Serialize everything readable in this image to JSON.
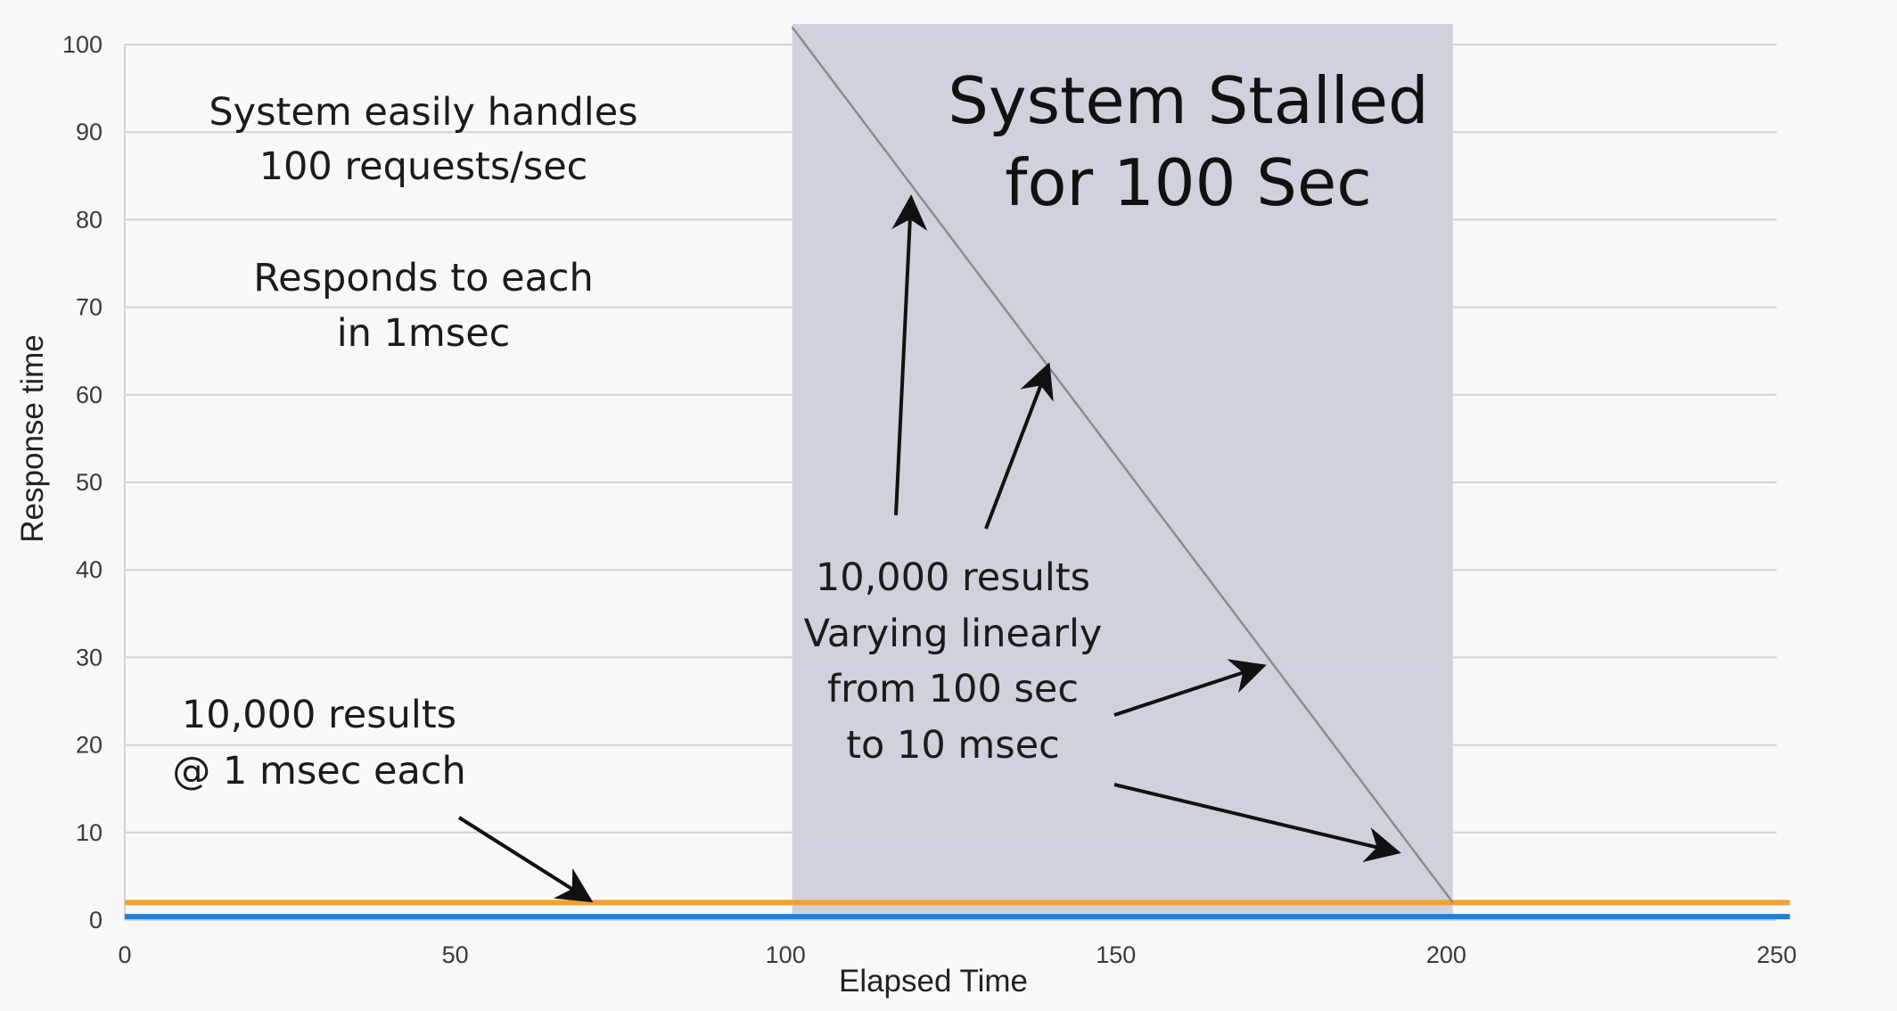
{
  "chart_data": {
    "type": "line",
    "xlabel": "Elapsed Time",
    "ylabel": "Response time",
    "xlim": [
      0,
      250
    ],
    "ylim": [
      0,
      100
    ],
    "x_ticks": [
      0,
      50,
      100,
      150,
      200,
      250
    ],
    "y_ticks": [
      0,
      10,
      20,
      30,
      40,
      50,
      60,
      70,
      80,
      90,
      100
    ],
    "grid": "horizontal",
    "shaded_region": {
      "x_start": 101,
      "x_end": 201,
      "color": "#cfd2dd"
    },
    "series": [
      {
        "color": "#f5a02d",
        "points": [
          [
            0,
            2
          ],
          [
            101,
            2
          ],
          [
            201,
            2
          ],
          [
            252,
            2
          ]
        ]
      },
      {
        "color": "#1f7fe0",
        "points": [
          [
            0,
            0.4
          ],
          [
            252,
            0.4
          ]
        ]
      },
      {
        "color": "#8a8c95",
        "points": [
          [
            101,
            102
          ],
          [
            201,
            2
          ]
        ]
      }
    ],
    "annotations": {
      "stalled": [
        "System Stalled",
        "for 100 Sec"
      ],
      "easily": [
        "System easily handles",
        "100 requests/sec"
      ],
      "responds": [
        "Responds to each",
        "in 1msec"
      ],
      "results_left": [
        "10,000 results",
        "@ 1 msec each"
      ],
      "results_mid": [
        "10,000 results",
        "Varying linearly",
        "from 100 sec",
        "to 10 msec"
      ]
    }
  },
  "colors": {
    "background": "#f8f8f8",
    "grid": "#d2d2d2",
    "shade": "#cfd2dd",
    "arrow": "#111111"
  }
}
